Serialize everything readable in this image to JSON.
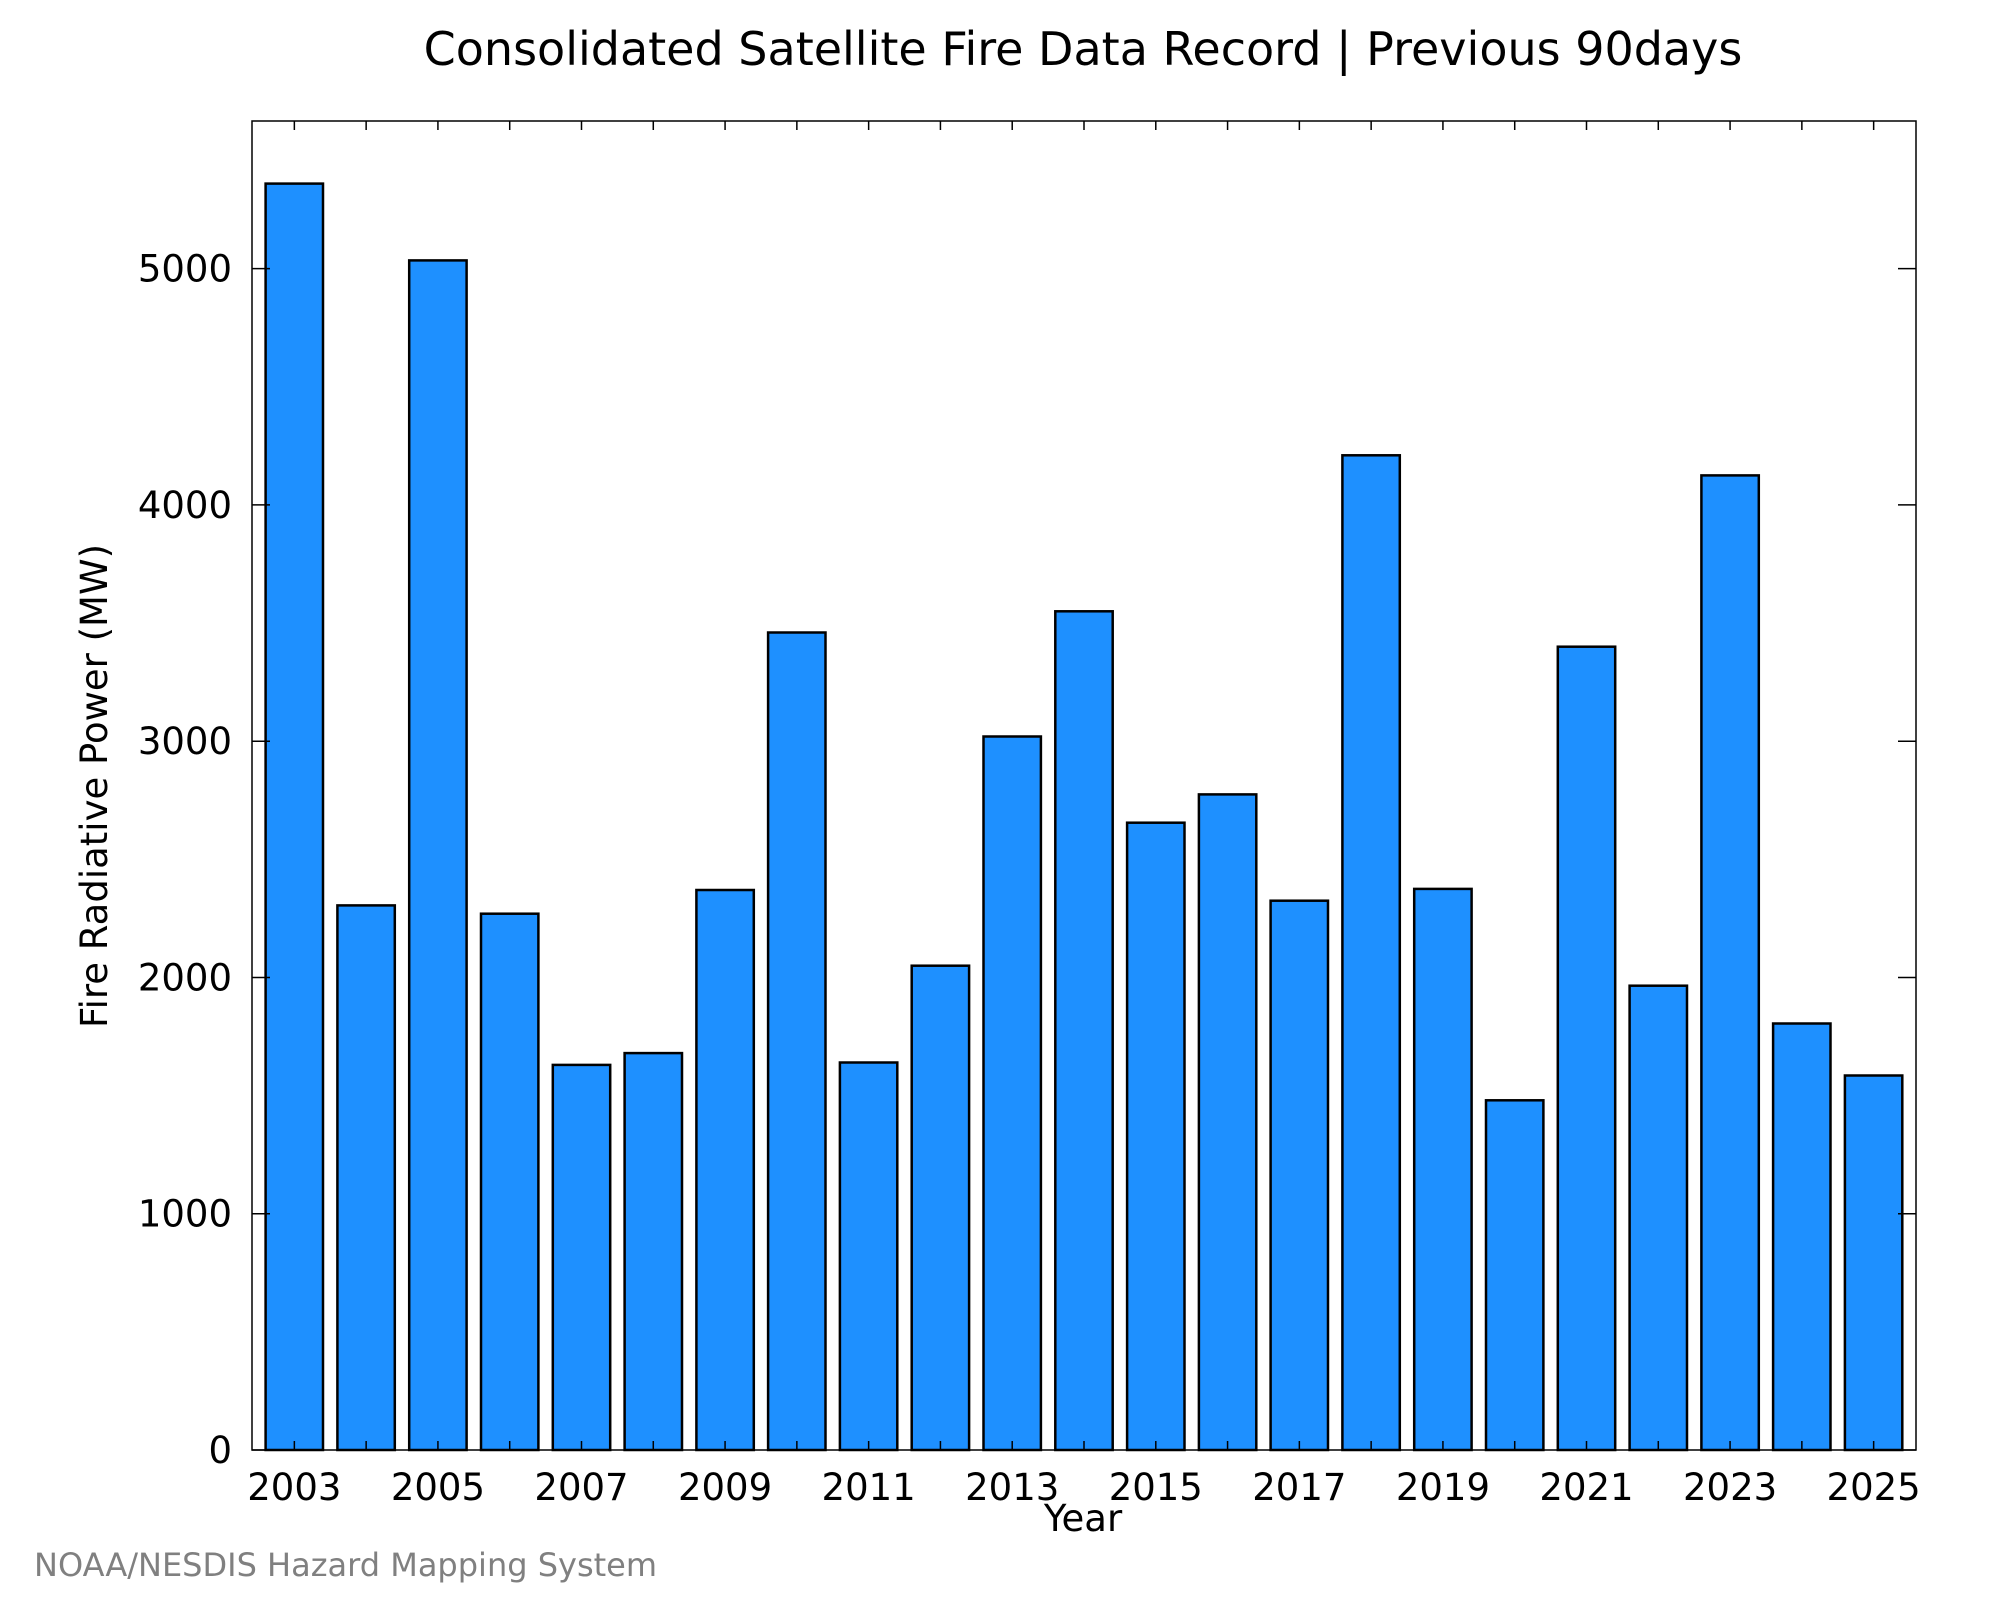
{
  "chart_data": {
    "type": "bar",
    "title": "Consolidated Satellite Fire Data Record | Previous 90days",
    "xlabel": "Year",
    "ylabel": "Fire Radiative Power (MW)",
    "categories": [
      "2003",
      "2004",
      "2005",
      "2006",
      "2007",
      "2008",
      "2009",
      "2010",
      "2011",
      "2012",
      "2013",
      "2014",
      "2015",
      "2016",
      "2017",
      "2018",
      "2019",
      "2020",
      "2021",
      "2022",
      "2023",
      "2024",
      "2025"
    ],
    "values": [
      5360,
      2305,
      5035,
      2270,
      1630,
      1680,
      2370,
      3460,
      1640,
      2050,
      3020,
      3550,
      2655,
      2775,
      2325,
      4210,
      2375,
      1480,
      3400,
      1965,
      4125,
      1805,
      1585
    ],
    "ylim": [
      0,
      5625
    ],
    "yticks": [
      0,
      1000,
      2000,
      3000,
      4000,
      5000
    ],
    "xticks": [
      "2003",
      "2005",
      "2007",
      "2009",
      "2011",
      "2013",
      "2015",
      "2017",
      "2019",
      "2021",
      "2023",
      "2025"
    ],
    "bar_color": "#1e90ff",
    "grid": false,
    "legend": false
  },
  "footer": {
    "credit": "NOAA/NESDIS Hazard Mapping System"
  }
}
